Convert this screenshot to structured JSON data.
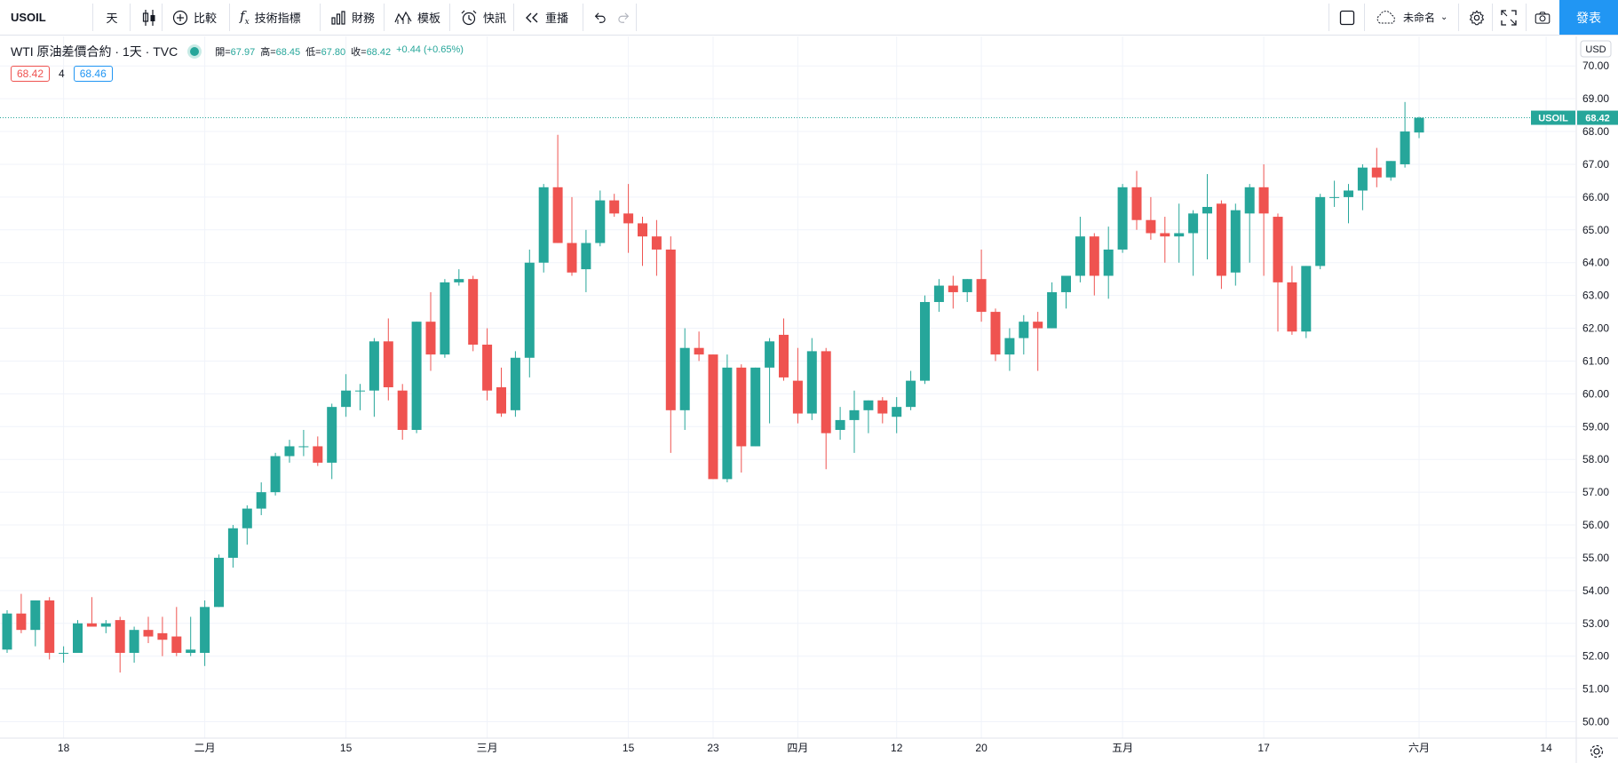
{
  "toolbar": {
    "symbol": "USOIL",
    "interval": "天",
    "compare": "比較",
    "indicators": "技術指標",
    "financials": "財務",
    "templates": "模板",
    "alerts": "快訊",
    "replay": "重播",
    "layout_name": "未命名",
    "publish": "發表"
  },
  "legend": {
    "title": "WTI 原油差價合約 · 1天 · TVC",
    "open_label": "開",
    "open": "67.97",
    "high_label": "高",
    "high": "68.45",
    "low_label": "低",
    "low": "67.80",
    "close_label": "收",
    "close": "68.42",
    "change": "+0.44 (+0.65%)",
    "bid": "68.42",
    "spread": "4",
    "ask": "68.46"
  },
  "price_tag": {
    "symbol": "USOIL",
    "price": "68.42"
  },
  "currency": "USD",
  "colors": {
    "up": "#26a69a",
    "down": "#ef5350",
    "accent": "#2196f3"
  },
  "chart_data": {
    "type": "candlestick",
    "title": "WTI 原油差價合約 · 1天 · TVC",
    "ylim": [
      49.5,
      70.9
    ],
    "y_ticks": [
      "50.00",
      "51.00",
      "52.00",
      "53.00",
      "54.00",
      "55.00",
      "56.00",
      "57.00",
      "58.00",
      "59.00",
      "60.00",
      "61.00",
      "62.00",
      "63.00",
      "64.00",
      "65.00",
      "66.00",
      "67.00",
      "68.00",
      "69.00",
      "70.00"
    ],
    "x_ticks": [
      {
        "label": "18",
        "index": 4
      },
      {
        "label": "二月",
        "index": 14
      },
      {
        "label": "15",
        "index": 24
      },
      {
        "label": "三月",
        "index": 34
      },
      {
        "label": "15",
        "index": 44
      },
      {
        "label": "23",
        "index": 50
      },
      {
        "label": "四月",
        "index": 56
      },
      {
        "label": "12",
        "index": 63
      },
      {
        "label": "20",
        "index": 69
      },
      {
        "label": "五月",
        "index": 79
      },
      {
        "label": "17",
        "index": 89
      },
      {
        "label": "六月",
        "index": 100
      },
      {
        "label": "14",
        "index": 109
      }
    ],
    "candles": [
      {
        "o": 52.2,
        "h": 53.4,
        "l": 52.1,
        "c": 53.3
      },
      {
        "o": 53.3,
        "h": 53.9,
        "l": 52.7,
        "c": 52.8
      },
      {
        "o": 52.8,
        "h": 53.7,
        "l": 52.3,
        "c": 53.7
      },
      {
        "o": 53.7,
        "h": 53.8,
        "l": 51.9,
        "c": 52.1
      },
      {
        "o": 52.1,
        "h": 52.3,
        "l": 51.8,
        "c": 52.1
      },
      {
        "o": 52.1,
        "h": 53.1,
        "l": 52.1,
        "c": 53.0
      },
      {
        "o": 53.0,
        "h": 53.8,
        "l": 52.9,
        "c": 52.9
      },
      {
        "o": 52.9,
        "h": 53.1,
        "l": 52.7,
        "c": 53.0
      },
      {
        "o": 53.1,
        "h": 53.2,
        "l": 51.5,
        "c": 52.1
      },
      {
        "o": 52.1,
        "h": 52.9,
        "l": 51.8,
        "c": 52.8
      },
      {
        "o": 52.8,
        "h": 53.2,
        "l": 52.4,
        "c": 52.6
      },
      {
        "o": 52.7,
        "h": 53.2,
        "l": 52.0,
        "c": 52.5
      },
      {
        "o": 52.6,
        "h": 53.5,
        "l": 52.0,
        "c": 52.1
      },
      {
        "o": 52.1,
        "h": 53.2,
        "l": 52.0,
        "c": 52.2
      },
      {
        "o": 52.1,
        "h": 53.7,
        "l": 51.7,
        "c": 53.5
      },
      {
        "o": 53.5,
        "h": 55.1,
        "l": 53.5,
        "c": 55.0
      },
      {
        "o": 55.0,
        "h": 56.0,
        "l": 54.7,
        "c": 55.9
      },
      {
        "o": 55.9,
        "h": 56.6,
        "l": 55.4,
        "c": 56.5
      },
      {
        "o": 56.5,
        "h": 57.3,
        "l": 56.3,
        "c": 57.0
      },
      {
        "o": 57.0,
        "h": 58.2,
        "l": 56.9,
        "c": 58.1
      },
      {
        "o": 58.1,
        "h": 58.6,
        "l": 57.9,
        "c": 58.4
      },
      {
        "o": 58.4,
        "h": 58.9,
        "l": 58.1,
        "c": 58.4
      },
      {
        "o": 58.4,
        "h": 58.7,
        "l": 57.8,
        "c": 57.9
      },
      {
        "o": 57.9,
        "h": 59.7,
        "l": 57.4,
        "c": 59.6
      },
      {
        "o": 59.6,
        "h": 60.6,
        "l": 59.3,
        "c": 60.1
      },
      {
        "o": 60.1,
        "h": 60.3,
        "l": 59.5,
        "c": 60.1
      },
      {
        "o": 60.1,
        "h": 61.7,
        "l": 59.3,
        "c": 61.6
      },
      {
        "o": 61.6,
        "h": 62.3,
        "l": 59.8,
        "c": 60.2
      },
      {
        "o": 60.1,
        "h": 60.3,
        "l": 58.6,
        "c": 58.9
      },
      {
        "o": 58.9,
        "h": 62.2,
        "l": 58.8,
        "c": 62.2
      },
      {
        "o": 62.2,
        "h": 63.1,
        "l": 60.7,
        "c": 61.2
      },
      {
        "o": 61.2,
        "h": 63.5,
        "l": 61.1,
        "c": 63.4
      },
      {
        "o": 63.4,
        "h": 63.8,
        "l": 63.3,
        "c": 63.5
      },
      {
        "o": 63.5,
        "h": 63.6,
        "l": 61.3,
        "c": 61.5
      },
      {
        "o": 61.5,
        "h": 62.0,
        "l": 59.8,
        "c": 60.1
      },
      {
        "o": 60.2,
        "h": 60.8,
        "l": 59.3,
        "c": 59.4
      },
      {
        "o": 59.5,
        "h": 61.3,
        "l": 59.3,
        "c": 61.1
      },
      {
        "o": 61.1,
        "h": 64.4,
        "l": 60.5,
        "c": 64.0
      },
      {
        "o": 64.0,
        "h": 66.4,
        "l": 63.7,
        "c": 66.3
      },
      {
        "o": 66.3,
        "h": 67.9,
        "l": 64.6,
        "c": 64.6
      },
      {
        "o": 64.6,
        "h": 66.0,
        "l": 63.6,
        "c": 63.7
      },
      {
        "o": 63.8,
        "h": 65.0,
        "l": 63.1,
        "c": 64.6
      },
      {
        "o": 64.6,
        "h": 66.2,
        "l": 64.5,
        "c": 65.9
      },
      {
        "o": 65.9,
        "h": 66.1,
        "l": 65.4,
        "c": 65.5
      },
      {
        "o": 65.5,
        "h": 66.4,
        "l": 64.3,
        "c": 65.2
      },
      {
        "o": 65.2,
        "h": 65.4,
        "l": 63.9,
        "c": 64.8
      },
      {
        "o": 64.8,
        "h": 65.3,
        "l": 63.6,
        "c": 64.4
      },
      {
        "o": 64.4,
        "h": 64.8,
        "l": 58.2,
        "c": 59.5
      },
      {
        "o": 59.5,
        "h": 62.0,
        "l": 58.9,
        "c": 61.4
      },
      {
        "o": 61.4,
        "h": 61.9,
        "l": 61.0,
        "c": 61.2
      },
      {
        "o": 61.2,
        "h": 61.2,
        "l": 57.4,
        "c": 57.4
      },
      {
        "o": 57.4,
        "h": 61.2,
        "l": 57.3,
        "c": 60.8
      },
      {
        "o": 60.8,
        "h": 60.9,
        "l": 57.6,
        "c": 58.4
      },
      {
        "o": 58.4,
        "h": 60.8,
        "l": 58.4,
        "c": 60.8
      },
      {
        "o": 60.8,
        "h": 61.7,
        "l": 59.1,
        "c": 61.6
      },
      {
        "o": 61.8,
        "h": 62.3,
        "l": 60.4,
        "c": 60.5
      },
      {
        "o": 60.4,
        "h": 61.4,
        "l": 59.1,
        "c": 59.4
      },
      {
        "o": 59.4,
        "h": 61.7,
        "l": 59.2,
        "c": 61.3
      },
      {
        "o": 61.3,
        "h": 61.4,
        "l": 57.7,
        "c": 58.8
      },
      {
        "o": 58.9,
        "h": 59.6,
        "l": 58.6,
        "c": 59.2
      },
      {
        "o": 59.2,
        "h": 60.1,
        "l": 58.2,
        "c": 59.5
      },
      {
        "o": 59.5,
        "h": 59.8,
        "l": 58.8,
        "c": 59.8
      },
      {
        "o": 59.8,
        "h": 59.9,
        "l": 59.1,
        "c": 59.4
      },
      {
        "o": 59.3,
        "h": 59.9,
        "l": 58.8,
        "c": 59.6
      },
      {
        "o": 59.6,
        "h": 60.7,
        "l": 59.5,
        "c": 60.4
      },
      {
        "o": 60.4,
        "h": 63.0,
        "l": 60.3,
        "c": 62.8
      },
      {
        "o": 62.8,
        "h": 63.5,
        "l": 62.5,
        "c": 63.3
      },
      {
        "o": 63.3,
        "h": 63.6,
        "l": 62.6,
        "c": 63.1
      },
      {
        "o": 63.1,
        "h": 63.5,
        "l": 62.8,
        "c": 63.5
      },
      {
        "o": 63.5,
        "h": 64.4,
        "l": 62.2,
        "c": 62.5
      },
      {
        "o": 62.5,
        "h": 62.6,
        "l": 61.0,
        "c": 61.2
      },
      {
        "o": 61.2,
        "h": 62.0,
        "l": 60.7,
        "c": 61.7
      },
      {
        "o": 61.7,
        "h": 62.4,
        "l": 61.2,
        "c": 62.2
      },
      {
        "o": 62.2,
        "h": 62.5,
        "l": 60.7,
        "c": 62.0
      },
      {
        "o": 62.0,
        "h": 63.4,
        "l": 62.0,
        "c": 63.1
      },
      {
        "o": 63.1,
        "h": 63.6,
        "l": 62.6,
        "c": 63.6
      },
      {
        "o": 63.6,
        "h": 65.4,
        "l": 63.4,
        "c": 64.8
      },
      {
        "o": 64.8,
        "h": 64.9,
        "l": 63.0,
        "c": 63.6
      },
      {
        "o": 63.6,
        "h": 65.1,
        "l": 62.9,
        "c": 64.4
      },
      {
        "o": 64.4,
        "h": 66.4,
        "l": 64.3,
        "c": 66.3
      },
      {
        "o": 66.3,
        "h": 66.8,
        "l": 65.0,
        "c": 65.3
      },
      {
        "o": 65.3,
        "h": 66.0,
        "l": 64.7,
        "c": 64.9
      },
      {
        "o": 64.9,
        "h": 65.4,
        "l": 64.0,
        "c": 64.8
      },
      {
        "o": 64.8,
        "h": 65.8,
        "l": 64.0,
        "c": 64.9
      },
      {
        "o": 64.9,
        "h": 65.6,
        "l": 63.6,
        "c": 65.5
      },
      {
        "o": 65.5,
        "h": 66.7,
        "l": 64.1,
        "c": 65.7
      },
      {
        "o": 65.8,
        "h": 65.9,
        "l": 63.2,
        "c": 63.6
      },
      {
        "o": 63.7,
        "h": 65.8,
        "l": 63.3,
        "c": 65.6
      },
      {
        "o": 65.5,
        "h": 66.4,
        "l": 64.0,
        "c": 66.3
      },
      {
        "o": 66.3,
        "h": 67.0,
        "l": 63.6,
        "c": 65.5
      },
      {
        "o": 65.4,
        "h": 65.5,
        "l": 61.9,
        "c": 63.4
      },
      {
        "o": 63.4,
        "h": 63.9,
        "l": 61.8,
        "c": 61.9
      },
      {
        "o": 61.9,
        "h": 63.9,
        "l": 61.7,
        "c": 63.9
      },
      {
        "o": 63.9,
        "h": 66.1,
        "l": 63.8,
        "c": 66.0
      },
      {
        "o": 66.0,
        "h": 66.5,
        "l": 65.7,
        "c": 66.0
      },
      {
        "o": 66.0,
        "h": 66.4,
        "l": 65.2,
        "c": 66.2
      },
      {
        "o": 66.2,
        "h": 67.0,
        "l": 65.6,
        "c": 66.9
      },
      {
        "o": 66.9,
        "h": 67.5,
        "l": 66.3,
        "c": 66.6
      },
      {
        "o": 66.6,
        "h": 67.1,
        "l": 66.5,
        "c": 67.1
      },
      {
        "o": 67.0,
        "h": 68.9,
        "l": 66.9,
        "c": 68.0
      },
      {
        "o": 67.97,
        "h": 68.45,
        "l": 67.8,
        "c": 68.42
      }
    ]
  }
}
